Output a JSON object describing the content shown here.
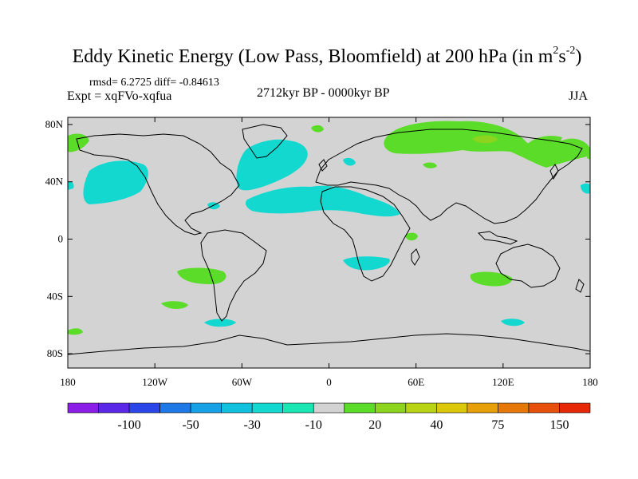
{
  "title": {
    "main": "Eddy Kinetic Energy (Low Pass, Bloomfield) at 200 hPa (in m",
    "sup1": "2",
    "mid": "s",
    "sup2": "-2",
    "end": ")"
  },
  "stats": "rmsd= 6.2725 diff= -0.84613",
  "experiment": "Expt = xqFVo-xqfua",
  "period": "2712kyr BP - 0000kyr BP",
  "season": "JJA",
  "map": {
    "land_fill": "#d3d3d3",
    "lat_ticks": [
      {
        "lat": 80,
        "label": "80N"
      },
      {
        "lat": 40,
        "label": "40N"
      },
      {
        "lat": 0,
        "label": "0"
      },
      {
        "lat": -40,
        "label": "40S"
      },
      {
        "lat": -80,
        "label": "80S"
      }
    ],
    "lon_ticks": [
      {
        "lon": -180,
        "label": "180"
      },
      {
        "lon": -120,
        "label": "120W"
      },
      {
        "lon": -60,
        "label": "60W"
      },
      {
        "lon": 0,
        "label": "0"
      },
      {
        "lon": 60,
        "label": "60E"
      },
      {
        "lon": 120,
        "label": "120E"
      },
      {
        "lon": 180,
        "label": "180"
      }
    ]
  },
  "colorbar": {
    "colors": [
      "#8a1ee6",
      "#5a28e6",
      "#2a46e8",
      "#1e78e6",
      "#16a0e6",
      "#10c0dc",
      "#12d8d0",
      "#1ae6b4",
      "#d2d2d2",
      "#5adc28",
      "#8cd41e",
      "#b8d214",
      "#dcc80a",
      "#e6a00a",
      "#e6780a",
      "#e6500a",
      "#e62808"
    ],
    "labels": [
      "-100",
      "-50",
      "-30",
      "-10",
      "20",
      "40",
      "75",
      "150"
    ]
  }
}
